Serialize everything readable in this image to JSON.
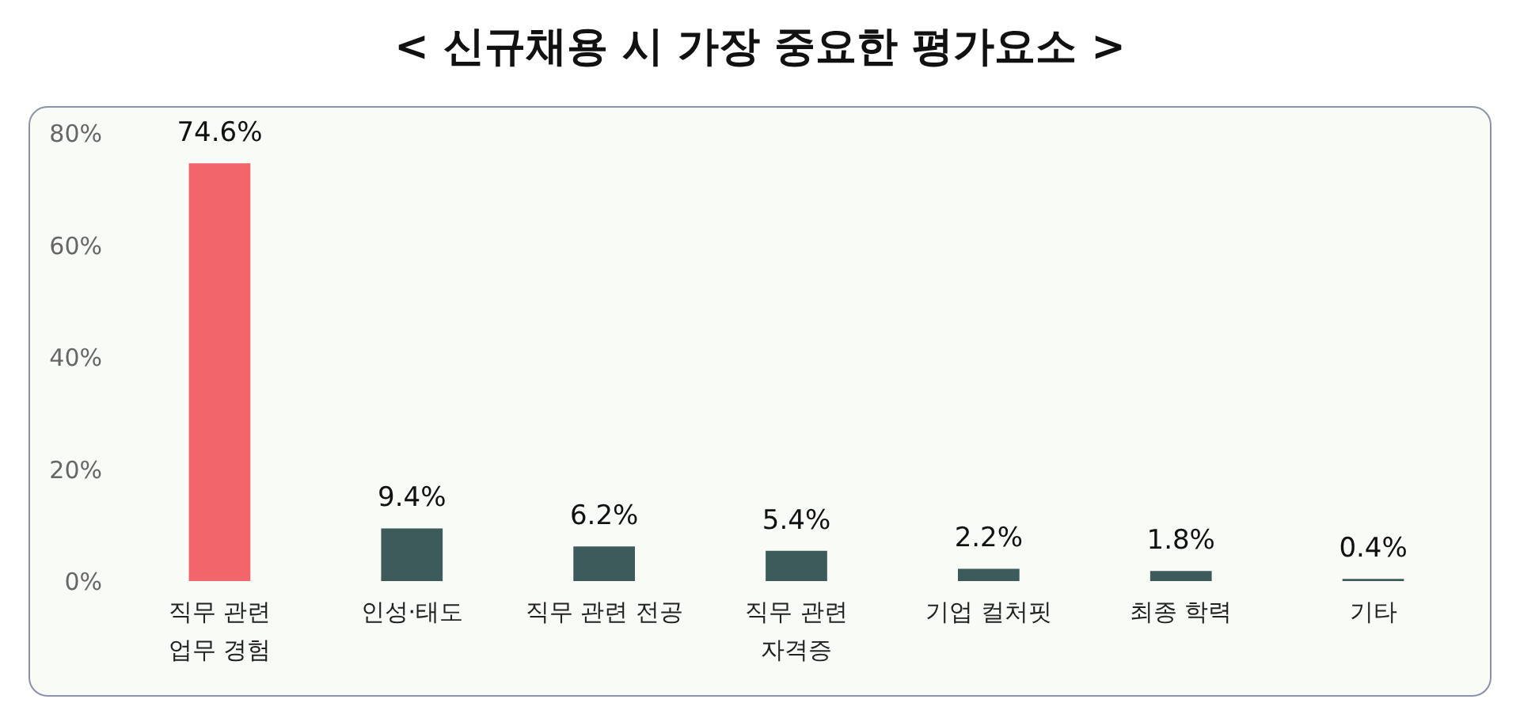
{
  "chart_data": {
    "type": "bar",
    "title": "< 신규채용 시 가장 중요한 평가요소 >",
    "categories": [
      "직무 관련 업무 경험",
      "인성·태도",
      "직무 관련 전공",
      "직무 관련 자격증",
      "기업 컬처핏",
      "최종 학력",
      "기타"
    ],
    "values": [
      74.6,
      9.4,
      6.2,
      5.4,
      2.2,
      1.8,
      0.4
    ],
    "colors": [
      "#f2656b",
      "#3e5b5c",
      "#3e5b5c",
      "#3e5b5c",
      "#3e5b5c",
      "#3e5b5c",
      "#3e5b5c"
    ],
    "value_labels": [
      "74.6%",
      "9.4%",
      "6.2%",
      "5.4%",
      "2.2%",
      "1.8%",
      "0.4%"
    ],
    "ylim": [
      0,
      80
    ],
    "yticks": [
      {
        "value": 0,
        "label": "0%"
      },
      {
        "value": 20,
        "label": "20%"
      },
      {
        "value": 40,
        "label": "40%"
      },
      {
        "value": 60,
        "label": "60%"
      },
      {
        "value": 80,
        "label": "80%"
      }
    ],
    "grid": false
  }
}
